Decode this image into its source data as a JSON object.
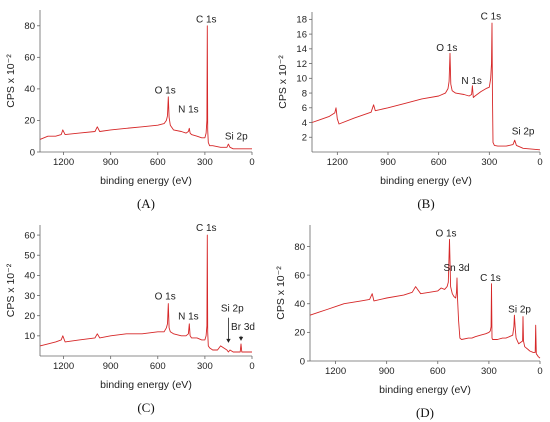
{
  "figure": {
    "panel_labels": [
      "(A)",
      "(B)",
      "(C)",
      "(D)"
    ]
  },
  "chart_data": [
    {
      "type": "line",
      "panel_label": "(A)",
      "xlabel": "binding energy (eV)",
      "ylabel": "CPS x 10⁻²",
      "xlim": [
        1350,
        0
      ],
      "ylim": [
        0,
        90
      ],
      "xticks": [
        1200,
        900,
        600,
        300,
        0
      ],
      "yticks": [
        0,
        20,
        40,
        60,
        80
      ],
      "line_color": "#d62728",
      "series": [
        {
          "x": [
            1350,
            1300,
            1250,
            1215,
            1205,
            1190,
            1100,
            1000,
            985,
            970,
            900,
            800,
            700,
            600,
            560,
            545,
            538,
            533,
            528,
            520,
            500,
            450,
            420,
            405,
            399,
            394,
            385,
            350,
            320,
            300,
            292,
            287,
            284.5,
            282,
            278,
            270,
            250,
            200,
            160,
            150,
            140,
            120,
            100,
            50,
            0
          ],
          "y": [
            8,
            10,
            10,
            11,
            14,
            11,
            12,
            13,
            16,
            13,
            14,
            15,
            16,
            17,
            18,
            20,
            23,
            35,
            22,
            17,
            14,
            13,
            12,
            13,
            15,
            12,
            11,
            10,
            9,
            9,
            12,
            20,
            80,
            14,
            6,
            4,
            4,
            3,
            3,
            5,
            3,
            2,
            2,
            2,
            2
          ]
        }
      ],
      "annotations": [
        {
          "text": "C 1s",
          "x": 285,
          "y": 82
        },
        {
          "text": "O 1s",
          "x": 540,
          "y": 37
        },
        {
          "text": "N 1s",
          "x": 405,
          "y": 25
        },
        {
          "text": "Si 2p",
          "x": 100,
          "y": 8
        }
      ]
    },
    {
      "type": "line",
      "panel_label": "(B)",
      "xlabel": "binding energy (eV)",
      "ylabel": "CPS x 10⁻²",
      "xlim": [
        1350,
        0
      ],
      "ylim": [
        0,
        19
      ],
      "xticks": [
        1200,
        900,
        600,
        300,
        0
      ],
      "yticks": [
        2,
        4,
        6,
        8,
        10,
        12,
        14,
        16,
        18
      ],
      "line_color": "#d62728",
      "series": [
        {
          "x": [
            1350,
            1300,
            1250,
            1215,
            1208,
            1200,
            1190,
            1100,
            1000,
            985,
            975,
            900,
            800,
            700,
            600,
            560,
            545,
            538,
            533,
            528,
            520,
            500,
            450,
            420,
            405,
            400,
            395,
            385,
            350,
            320,
            300,
            292,
            287,
            284.5,
            282,
            278,
            270,
            250,
            200,
            160,
            150,
            140,
            120,
            100,
            50,
            0
          ],
          "y": [
            4.0,
            4.4,
            4.8,
            5.3,
            6.0,
            4.5,
            3.8,
            4.6,
            5.4,
            6.4,
            5.6,
            6.0,
            6.6,
            7.2,
            7.6,
            8.0,
            8.6,
            9.6,
            13.4,
            9.2,
            8.3,
            8.0,
            7.8,
            7.6,
            7.8,
            9.0,
            7.4,
            7.6,
            8.2,
            8.6,
            8.8,
            10.0,
            12.0,
            17.5,
            8.5,
            1.3,
            0.9,
            0.8,
            0.8,
            1.0,
            1.6,
            0.9,
            0.7,
            0.5,
            0.4,
            0.3
          ]
        }
      ],
      "annotations": [
        {
          "text": "C 1s",
          "x": 285,
          "y": 18
        },
        {
          "text": "O 1s",
          "x": 540,
          "y": 13.7
        },
        {
          "text": "N 1s",
          "x": 405,
          "y": 9.2
        },
        {
          "text": "Si 2p",
          "x": 100,
          "y": 2.4
        }
      ]
    },
    {
      "type": "line",
      "panel_label": "(C)",
      "xlabel": "binding energy (eV)",
      "ylabel": "CPS x 10⁻²",
      "xlim": [
        1350,
        0
      ],
      "ylim": [
        0,
        65
      ],
      "xticks": [
        1200,
        900,
        600,
        300,
        0
      ],
      "yticks": [
        10,
        20,
        30,
        40,
        50,
        60
      ],
      "line_color": "#d62728",
      "series": [
        {
          "x": [
            1350,
            1300,
            1250,
            1215,
            1205,
            1190,
            1100,
            1000,
            985,
            970,
            900,
            800,
            700,
            600,
            560,
            545,
            538,
            533,
            528,
            520,
            500,
            450,
            420,
            405,
            399,
            394,
            385,
            350,
            320,
            300,
            292,
            287,
            284.5,
            282,
            278,
            270,
            250,
            220,
            200,
            160,
            150,
            140,
            120,
            100,
            75,
            70,
            65,
            50,
            0
          ],
          "y": [
            5,
            6,
            7,
            8,
            10,
            7,
            8,
            9,
            11,
            9,
            10,
            11,
            11,
            12,
            12,
            14,
            16,
            26,
            14,
            12,
            11,
            10,
            10,
            11,
            16,
            10,
            9,
            9,
            8,
            8,
            10,
            15,
            60,
            12,
            5,
            4,
            3,
            3,
            5,
            3,
            2,
            3,
            2,
            2,
            2,
            6,
            2,
            2,
            2
          ]
        }
      ],
      "annotations": [
        {
          "text": "C 1s",
          "x": 285,
          "y": 62
        },
        {
          "text": "O 1s",
          "x": 540,
          "y": 28
        },
        {
          "text": "N 1s",
          "x": 405,
          "y": 18
        },
        {
          "text": "Si 2p",
          "x": 100,
          "y": 22
        },
        {
          "text": "Br 3d",
          "x": 70,
          "y": 13
        }
      ]
    },
    {
      "type": "line",
      "panel_label": "(D)",
      "xlabel": "binding energy (eV)",
      "ylabel": "CPS x 10⁻²",
      "xlim": [
        1350,
        0
      ],
      "ylim": [
        0,
        95
      ],
      "xticks": [
        1200,
        900,
        600,
        300,
        0
      ],
      "yticks": [
        0,
        20,
        40,
        60,
        80
      ],
      "line_color": "#d62728",
      "series": [
        {
          "x": [
            1350,
            1300,
            1250,
            1200,
            1150,
            1100,
            1050,
            1000,
            985,
            975,
            900,
            800,
            750,
            730,
            700,
            650,
            600,
            580,
            560,
            545,
            538,
            531,
            525,
            515,
            505,
            495,
            490,
            487,
            484,
            478,
            470,
            460,
            420,
            400,
            380,
            350,
            320,
            300,
            292,
            287,
            284.5,
            282,
            278,
            270,
            250,
            220,
            200,
            180,
            160,
            153,
            150,
            145,
            140,
            125,
            102,
            100,
            97,
            90,
            70,
            60,
            40,
            28,
            25,
            22,
            15,
            10,
            0
          ],
          "y": [
            32,
            34,
            36,
            38,
            40,
            41,
            42,
            43,
            47,
            42,
            44,
            46,
            48,
            52,
            47,
            48,
            49,
            51,
            50,
            52,
            55,
            85,
            52,
            47,
            45,
            44,
            48,
            58,
            44,
            28,
            16,
            15,
            16,
            16,
            17,
            18,
            19,
            20,
            21,
            24,
            54,
            16,
            15,
            15,
            15,
            16,
            16,
            17,
            18,
            24,
            32,
            22,
            16,
            12,
            14,
            31,
            14,
            10,
            8,
            7,
            6,
            6,
            25,
            5,
            4,
            3,
            2
          ]
        }
      ],
      "annotations": [
        {
          "text": "O 1s",
          "x": 540,
          "y": 87
        },
        {
          "text": "Sn 3d",
          "x": 490,
          "y": 63
        },
        {
          "text": "C 1s",
          "x": 285,
          "y": 56
        },
        {
          "text": "Si 2p",
          "x": 120,
          "y": 34
        }
      ]
    }
  ]
}
